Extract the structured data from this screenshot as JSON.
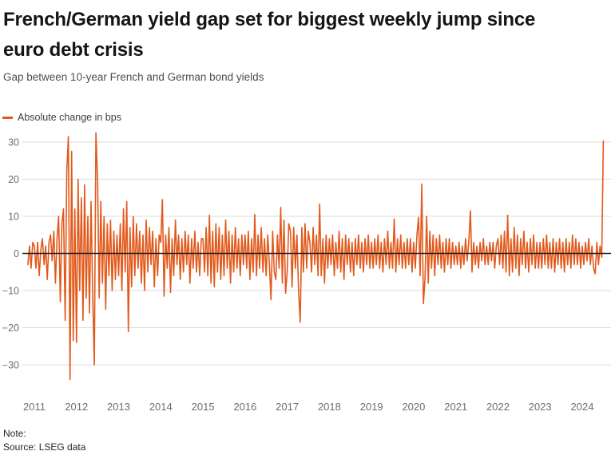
{
  "header": {
    "title_line1": "French/German yield gap set for biggest weekly jump since",
    "title_line2": "euro debt crisis",
    "subtitle": "Gap between 10-year French and German bond yields"
  },
  "legend": {
    "label": "Absolute change in bps"
  },
  "footer": {
    "note_label": "Note:",
    "source": "Source: LSEG data"
  },
  "chart_data": {
    "type": "line",
    "title": "French/German yield gap set for biggest weekly jump since euro debt crisis",
    "subtitle": "Gap between 10-year French and German bond yields",
    "legend_position": "top-left",
    "grid": "horizontal",
    "zero_line": true,
    "xlim": [
      2010.7,
      2024.68
    ],
    "ylim": [
      -38,
      35
    ],
    "yticks": [
      30,
      20,
      10,
      0,
      -10,
      -20,
      -30
    ],
    "ytick_labels": [
      "30",
      "20",
      "10",
      "0",
      "−10",
      "−20",
      "−30"
    ],
    "xticks": [
      2011,
      2012,
      2013,
      2014,
      2015,
      2016,
      2017,
      2018,
      2019,
      2020,
      2021,
      2022,
      2023,
      2024
    ],
    "xtick_labels": [
      "2011",
      "2012",
      "2013",
      "2014",
      "2015",
      "2016",
      "2017",
      "2018",
      "2019",
      "2020",
      "2021",
      "2022",
      "2023",
      "2024"
    ],
    "colors": {
      "accent": "#E2591B",
      "grid": "#DBDBDB",
      "zero_line": "#222222",
      "tick_text": "#6E6E6E"
    },
    "series": [
      {
        "name": "Absolute change in bps",
        "color": "#E2591B",
        "x_unit": "year",
        "x_start": 2010.846154,
        "x_step": 0.0384615,
        "values": [
          -3,
          2,
          -4,
          3,
          2,
          -4,
          3,
          -6,
          1,
          4,
          -3,
          2,
          -7,
          3,
          5,
          -2,
          6,
          -8,
          4,
          10,
          -13,
          8,
          12,
          -18,
          22,
          31.5,
          -34,
          27.5,
          -23.5,
          12,
          -24,
          20,
          -10,
          15,
          -18,
          18.5,
          -12,
          10,
          -16,
          14,
          -12,
          -30,
          32.5,
          19.5,
          -12,
          14,
          -8,
          10,
          -15,
          8,
          -6,
          9,
          -10,
          6,
          -7,
          5,
          -6,
          8,
          -10,
          12,
          -5,
          14,
          -21,
          7,
          -9,
          10,
          -6,
          8,
          -4,
          6,
          -8,
          5,
          -10,
          9,
          -5,
          7,
          -3,
          6,
          -9,
          4,
          -6,
          5,
          3,
          14.5,
          -11.5,
          5,
          -4,
          7,
          -10.5,
          4,
          -6,
          9,
          -3,
          5,
          -7,
          4,
          -5,
          6,
          -3,
          5,
          -8,
          4,
          -4,
          6,
          -5,
          3,
          -6,
          4,
          4,
          -5,
          7,
          -6,
          10.3,
          -8,
          6,
          -9,
          8,
          -5,
          7,
          -7,
          5,
          -6,
          9,
          -4,
          6,
          -8,
          5,
          -5,
          7,
          -4,
          4,
          -6,
          5,
          -3,
          5,
          -4,
          6,
          -7,
          4,
          -5,
          10.5,
          -6,
          5,
          -4,
          7,
          -5,
          4,
          -6,
          5,
          -3,
          -12.5,
          6,
          -5,
          -7,
          5,
          -4,
          12.4,
          -8,
          9,
          -10.7,
          -5,
          8,
          6,
          -9,
          7,
          -4,
          5,
          -10,
          -18.5,
          7,
          -5,
          8,
          -4,
          6,
          3,
          -5,
          7,
          -3,
          5,
          -6,
          13.3,
          -6,
          4,
          -8,
          5,
          -4,
          4,
          -3,
          5,
          -6,
          3,
          -4,
          6,
          -5,
          4,
          -7,
          5,
          -3,
          4,
          -5,
          3,
          -6,
          4,
          -3,
          5,
          -4,
          3,
          -5,
          4,
          -3,
          5,
          -4,
          3,
          -4,
          4,
          -3,
          5,
          -4,
          3,
          -5,
          4,
          -3,
          6,
          -4,
          3,
          -4,
          9.3,
          -5,
          4,
          -3,
          5,
          -4,
          3,
          -4,
          4,
          -3,
          4,
          -5,
          3,
          -4,
          5,
          9.7,
          -6,
          18.7,
          -13.5,
          -7,
          10,
          -8,
          6,
          -4,
          5,
          -6,
          4,
          -3,
          5,
          -4,
          3,
          -5,
          4,
          -3,
          4,
          -4,
          3,
          -3,
          2,
          -3,
          3,
          -4,
          2,
          -3,
          4,
          -2,
          3,
          11.5,
          -5,
          3,
          -3,
          2,
          -4,
          3,
          -2,
          4,
          -3,
          2,
          -3,
          3,
          -2,
          3,
          -4,
          2,
          4,
          -3,
          5,
          -4,
          6,
          -5,
          10.3,
          -6,
          4,
          -5,
          7,
          -4,
          5,
          -6,
          4,
          -3,
          6,
          -4,
          3,
          -5,
          4,
          -3,
          5,
          -4,
          3,
          -4,
          3,
          -4,
          4,
          -3,
          5,
          -4,
          3,
          -4,
          4,
          -5,
          3,
          -3,
          4,
          -4,
          3,
          -5,
          4,
          -3,
          3,
          -4,
          5,
          -3,
          4,
          -3,
          3,
          -4,
          2,
          -3,
          3,
          -2,
          4,
          -3,
          2,
          -4,
          -5.5,
          3,
          -3,
          2,
          -1,
          30.3
        ]
      }
    ]
  }
}
